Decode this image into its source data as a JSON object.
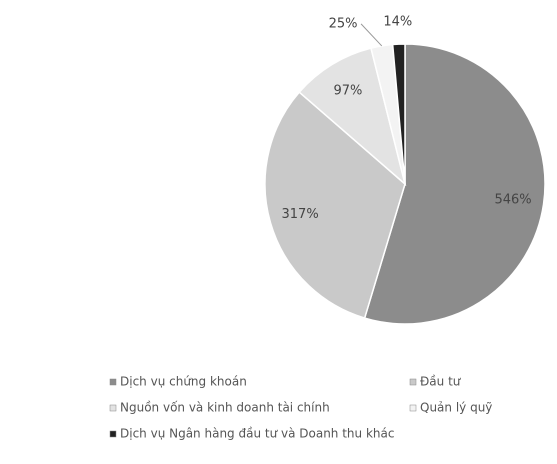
{
  "chart_data": {
    "type": "pie",
    "categories": [
      "Dịch vụ chứng khoán",
      "Đầu tư",
      "Nguồn vốn và kinh doanh tài chính",
      "Quản lý quỹ",
      "Dịch vụ Ngân hàng đầu tư và Doanh thu khác"
    ],
    "values": [
      546,
      317,
      97,
      25,
      14
    ],
    "value_labels": [
      "546%",
      "317%",
      "97%",
      "25%",
      "14%"
    ],
    "colors": [
      "#8c8c8c",
      "#c9c9c9",
      "#e3e3e3",
      "#f3f3f3",
      "#222222"
    ],
    "legend": "bottom"
  }
}
